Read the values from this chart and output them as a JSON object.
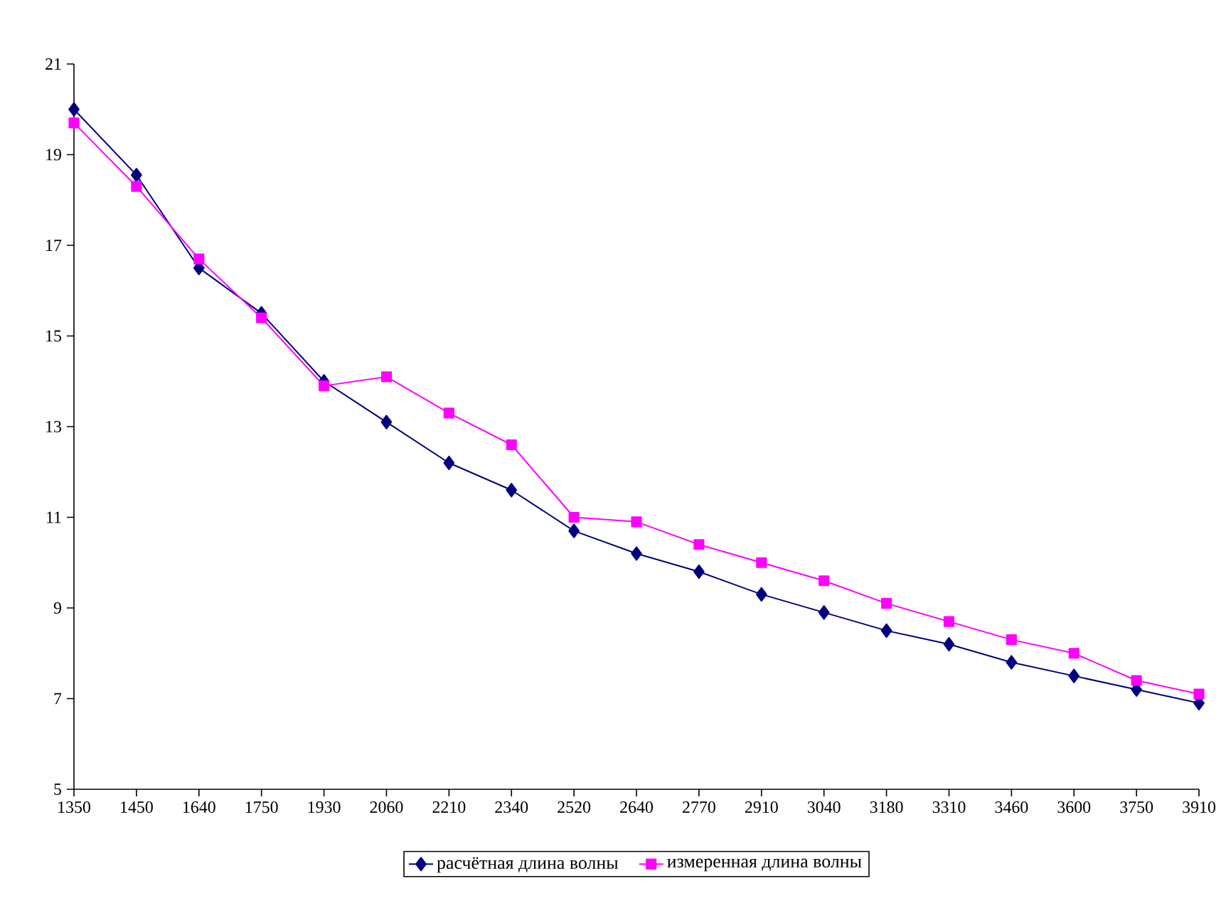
{
  "chart_data": {
    "type": "line",
    "categories": [
      "1350",
      "1450",
      "1640",
      "1750",
      "1930",
      "2060",
      "2210",
      "2340",
      "2520",
      "2640",
      "2770",
      "2910",
      "3040",
      "3180",
      "3310",
      "3460",
      "3600",
      "3750",
      "3910"
    ],
    "series": [
      {
        "name": "расчётная длина волны",
        "color": "#000080",
        "marker": "diamond",
        "values": [
          20.0,
          18.55,
          16.5,
          15.5,
          14.0,
          13.1,
          12.2,
          11.6,
          10.7,
          10.2,
          9.8,
          9.3,
          8.9,
          8.5,
          8.2,
          7.8,
          7.5,
          7.2,
          6.9
        ]
      },
      {
        "name": "измеренная длина волны",
        "color": "#ff00ff",
        "marker": "square",
        "values": [
          19.7,
          18.3,
          16.7,
          15.4,
          13.9,
          14.1,
          13.3,
          12.6,
          11.0,
          10.9,
          10.4,
          10.0,
          9.6,
          9.1,
          8.7,
          8.3,
          8.0,
          7.4,
          7.1
        ]
      }
    ],
    "ylim": [
      5,
      21
    ],
    "yticks": [
      5,
      7,
      9,
      11,
      13,
      15,
      17,
      19,
      21
    ],
    "grid": false,
    "legend": "bottom",
    "line_style": "solid"
  }
}
